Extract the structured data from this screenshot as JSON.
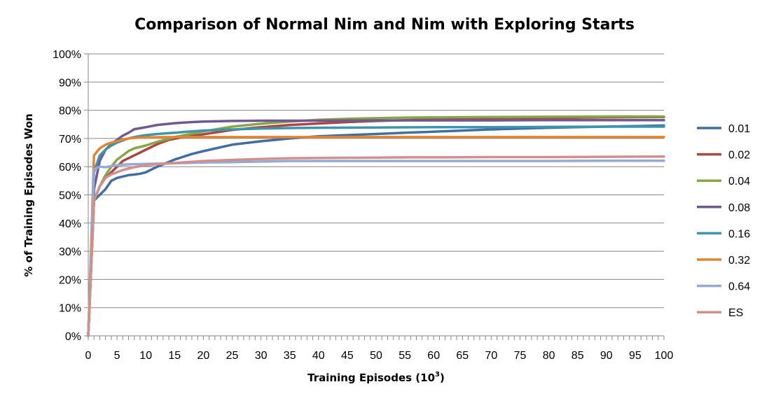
{
  "chart_data": {
    "type": "line",
    "title": "Comparison of Normal Nim and Nim with Exploring Starts",
    "xlabel": "Training Episodes (10",
    "xlabel_sup": "3",
    "xlabel_end": ")",
    "ylabel": "% of Training Episodes Won",
    "xlim": [
      0,
      100
    ],
    "ylim": [
      0,
      100
    ],
    "x_ticks": [
      0,
      5,
      10,
      15,
      20,
      25,
      30,
      35,
      40,
      45,
      50,
      55,
      60,
      65,
      70,
      75,
      80,
      85,
      90,
      95,
      100
    ],
    "y_tick_labels": [
      "0%",
      "10%",
      "20%",
      "30%",
      "40%",
      "50%",
      "60%",
      "70%",
      "80%",
      "90%",
      "100%"
    ],
    "grid": "horizontal",
    "legend_position": "right",
    "series": [
      {
        "name": "0.01",
        "color": "#3f6ea6",
        "points": [
          [
            0,
            0
          ],
          [
            1,
            48
          ],
          [
            2,
            50
          ],
          [
            3,
            52
          ],
          [
            4,
            55
          ],
          [
            5,
            56
          ],
          [
            6,
            56.5
          ],
          [
            7,
            57
          ],
          [
            8,
            57.2
          ],
          [
            9,
            57.5
          ],
          [
            10,
            58
          ],
          [
            12,
            60
          ],
          [
            15,
            62.5
          ],
          [
            18,
            64.5
          ],
          [
            20,
            65.5
          ],
          [
            25,
            67.8
          ],
          [
            30,
            69
          ],
          [
            35,
            70
          ],
          [
            40,
            70.8
          ],
          [
            45,
            71.2
          ],
          [
            50,
            71.6
          ],
          [
            55,
            72
          ],
          [
            60,
            72.4
          ],
          [
            65,
            72.8
          ],
          [
            70,
            73.2
          ],
          [
            75,
            73.5
          ],
          [
            80,
            73.8
          ],
          [
            85,
            74
          ],
          [
            90,
            74.2
          ],
          [
            95,
            74.4
          ],
          [
            100,
            74.6
          ]
        ]
      },
      {
        "name": "0.02",
        "color": "#ad4543",
        "points": [
          [
            0,
            0
          ],
          [
            1,
            48
          ],
          [
            2,
            53
          ],
          [
            3,
            56
          ],
          [
            4,
            58
          ],
          [
            5,
            60
          ],
          [
            6,
            62
          ],
          [
            7,
            63
          ],
          [
            8,
            64
          ],
          [
            10,
            66
          ],
          [
            12,
            68
          ],
          [
            14,
            69.5
          ],
          [
            16,
            70.3
          ],
          [
            20,
            71.5
          ],
          [
            25,
            73
          ],
          [
            30,
            74
          ],
          [
            35,
            74.8
          ],
          [
            40,
            75.3
          ],
          [
            45,
            75.8
          ],
          [
            50,
            76.2
          ],
          [
            55,
            76.5
          ],
          [
            60,
            76.8
          ],
          [
            70,
            77.1
          ],
          [
            80,
            77.3
          ],
          [
            90,
            77.5
          ],
          [
            100,
            77.6
          ]
        ]
      },
      {
        "name": "0.04",
        "color": "#86a744",
        "points": [
          [
            0,
            0
          ],
          [
            1,
            48
          ],
          [
            2,
            53
          ],
          [
            3,
            57
          ],
          [
            4,
            60
          ],
          [
            5,
            62.5
          ],
          [
            6,
            64
          ],
          [
            7,
            65.5
          ],
          [
            8,
            66.5
          ],
          [
            10,
            67.5
          ],
          [
            12,
            68.8
          ],
          [
            15,
            70.5
          ],
          [
            20,
            72.5
          ],
          [
            25,
            74.2
          ],
          [
            30,
            75.2
          ],
          [
            35,
            76
          ],
          [
            40,
            76.6
          ],
          [
            45,
            77
          ],
          [
            50,
            77.2
          ],
          [
            55,
            77.4
          ],
          [
            60,
            77.5
          ],
          [
            70,
            77.6
          ],
          [
            80,
            77.7
          ],
          [
            90,
            77.8
          ],
          [
            100,
            77.8
          ]
        ]
      },
      {
        "name": "0.08",
        "color": "#705892",
        "points": [
          [
            0,
            0
          ],
          [
            1,
            52
          ],
          [
            2,
            62
          ],
          [
            3,
            66
          ],
          [
            4,
            68
          ],
          [
            5,
            69.5
          ],
          [
            6,
            71
          ],
          [
            7,
            72
          ],
          [
            8,
            73.3
          ],
          [
            10,
            74
          ],
          [
            12,
            74.8
          ],
          [
            15,
            75.4
          ],
          [
            18,
            75.8
          ],
          [
            20,
            76
          ],
          [
            25,
            76.2
          ],
          [
            30,
            76.3
          ],
          [
            40,
            76.3
          ],
          [
            50,
            76.4
          ],
          [
            60,
            76.4
          ],
          [
            70,
            76.4
          ],
          [
            80,
            76.5
          ],
          [
            90,
            76.5
          ],
          [
            100,
            76.5
          ]
        ]
      },
      {
        "name": "0.16",
        "color": "#3c95ad",
        "points": [
          [
            0,
            0
          ],
          [
            1,
            58
          ],
          [
            2,
            64
          ],
          [
            3,
            66
          ],
          [
            4,
            67.5
          ],
          [
            5,
            68.5
          ],
          [
            6,
            69.3
          ],
          [
            7,
            70
          ],
          [
            8,
            70.5
          ],
          [
            10,
            71.2
          ],
          [
            12,
            71.6
          ],
          [
            15,
            72
          ],
          [
            18,
            72.5
          ],
          [
            20,
            72.8
          ],
          [
            25,
            73.2
          ],
          [
            30,
            73.5
          ],
          [
            35,
            73.7
          ],
          [
            40,
            73.8
          ],
          [
            50,
            73.9
          ],
          [
            60,
            74
          ],
          [
            70,
            74
          ],
          [
            80,
            74.1
          ],
          [
            90,
            74.2
          ],
          [
            100,
            74.2
          ]
        ]
      },
      {
        "name": "0.32",
        "color": "#e3842f",
        "points": [
          [
            0,
            0
          ],
          [
            1,
            64
          ],
          [
            2,
            66.5
          ],
          [
            3,
            67.8
          ],
          [
            4,
            68.5
          ],
          [
            5,
            69
          ],
          [
            6,
            69.6
          ],
          [
            7,
            70
          ],
          [
            8,
            70.2
          ],
          [
            10,
            70.4
          ],
          [
            15,
            70.5
          ],
          [
            20,
            70.5
          ],
          [
            30,
            70.5
          ],
          [
            40,
            70.5
          ],
          [
            50,
            70.5
          ],
          [
            60,
            70.5
          ],
          [
            70,
            70.5
          ],
          [
            80,
            70.5
          ],
          [
            90,
            70.5
          ],
          [
            100,
            70.5
          ]
        ]
      },
      {
        "name": "0.64",
        "color": "#93aad6",
        "points": [
          [
            0,
            0
          ],
          [
            1,
            59
          ],
          [
            2,
            60
          ],
          [
            3,
            59.8
          ],
          [
            4,
            60.2
          ],
          [
            5,
            60.5
          ],
          [
            6,
            60.7
          ],
          [
            8,
            60.9
          ],
          [
            10,
            61
          ],
          [
            15,
            61.2
          ],
          [
            20,
            61.5
          ],
          [
            25,
            61.6
          ],
          [
            30,
            61.8
          ],
          [
            35,
            62
          ],
          [
            40,
            62
          ],
          [
            50,
            62
          ],
          [
            60,
            62
          ],
          [
            70,
            62
          ],
          [
            80,
            62
          ],
          [
            90,
            62.1
          ],
          [
            100,
            62.1
          ]
        ]
      },
      {
        "name": "ES",
        "color": "#d38f8c",
        "points": [
          [
            0,
            0
          ],
          [
            1,
            48
          ],
          [
            2,
            53
          ],
          [
            3,
            56
          ],
          [
            4,
            57.3
          ],
          [
            5,
            58
          ],
          [
            6,
            58.8
          ],
          [
            8,
            59.8
          ],
          [
            10,
            60.5
          ],
          [
            12,
            60.9
          ],
          [
            15,
            61.3
          ],
          [
            20,
            62
          ],
          [
            25,
            62.4
          ],
          [
            30,
            62.7
          ],
          [
            35,
            63
          ],
          [
            40,
            63.1
          ],
          [
            50,
            63.2
          ],
          [
            55,
            63.3
          ],
          [
            60,
            63.3
          ],
          [
            70,
            63.4
          ],
          [
            80,
            63.4
          ],
          [
            90,
            63.5
          ],
          [
            100,
            63.6
          ]
        ]
      }
    ]
  }
}
